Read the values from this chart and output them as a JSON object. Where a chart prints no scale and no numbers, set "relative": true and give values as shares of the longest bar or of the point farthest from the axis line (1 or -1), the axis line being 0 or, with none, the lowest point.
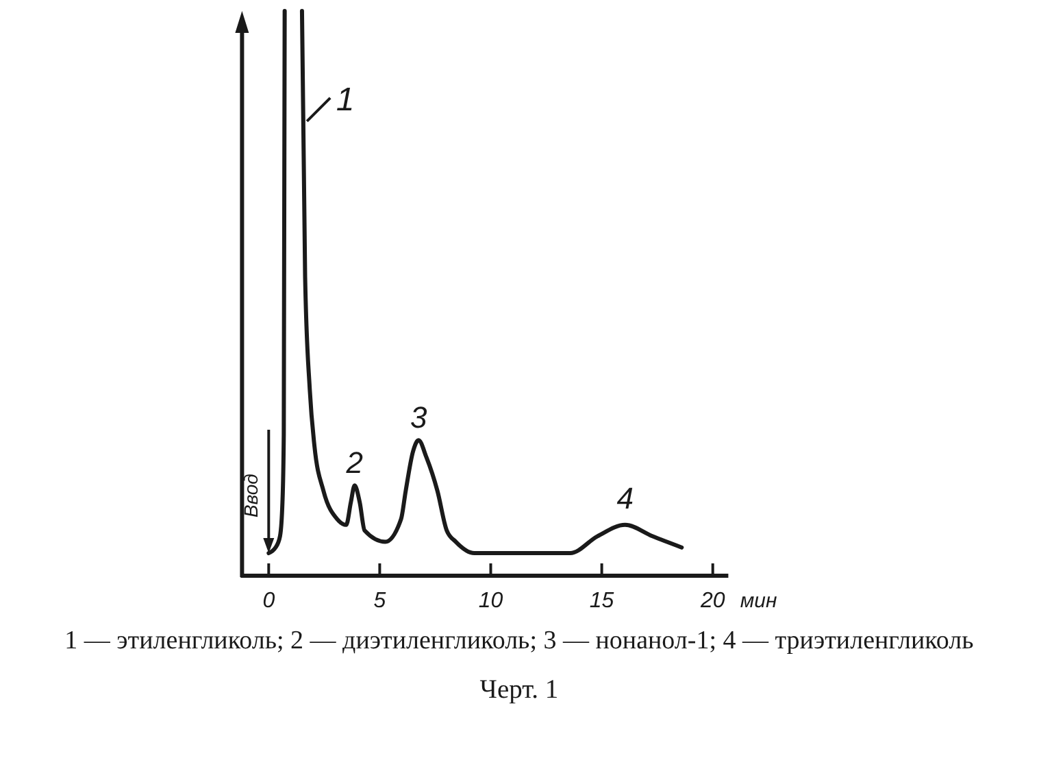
{
  "chart_data": {
    "type": "line",
    "relative": true,
    "xlabel": "мин",
    "xlim": [
      -1.2,
      20.7
    ],
    "xticks": [
      0,
      5,
      10,
      15,
      20
    ],
    "line_style": "solid",
    "x": [
      0,
      0.31,
      0.51,
      0.62,
      0.68,
      0.72,
      1.1,
      1.5,
      1.64,
      1.85,
      2.06,
      2.47,
      3.09,
      3.49,
      3.7,
      3.87,
      4.1,
      4.32,
      5.25,
      5.96,
      6.17,
      6.5,
      6.75,
      7.1,
      7.6,
      8.02,
      8.43,
      9.26,
      13.58,
      14.81,
      16.05,
      17.28,
      18.6
    ],
    "series": [
      {
        "color": "#1a1a1a",
        "values": [
          0.04,
          0.05,
          0.07,
          0.13,
          0.25,
          1,
          null,
          1,
          0.53,
          0.33,
          0.23,
          0.15,
          0.1,
          0.09,
          0.13,
          0.16,
          0.13,
          0.08,
          0.06,
          0.1,
          0.15,
          0.22,
          0.24,
          0.21,
          0.15,
          0.08,
          0.06,
          0.04,
          0.04,
          0.07,
          0.09,
          0.07,
          0.05
        ]
      }
    ],
    "annotations": [
      {
        "text": "1",
        "x": 1.6,
        "y": 0.8
      },
      {
        "text": "2",
        "x": 3.87,
        "y": 0.16
      },
      {
        "text": "3",
        "x": 6.75,
        "y": 0.24
      },
      {
        "text": "4",
        "x": 16.05,
        "y": 0.09
      },
      {
        "text": "Ввод",
        "x": 0,
        "y": 0.04
      },
      "1 — этиленгликоль; 2 — диэтиленгликоль; 3 — нонанол-1; 4 — триэтиленгликоль",
      "Черт. 1"
    ]
  }
}
